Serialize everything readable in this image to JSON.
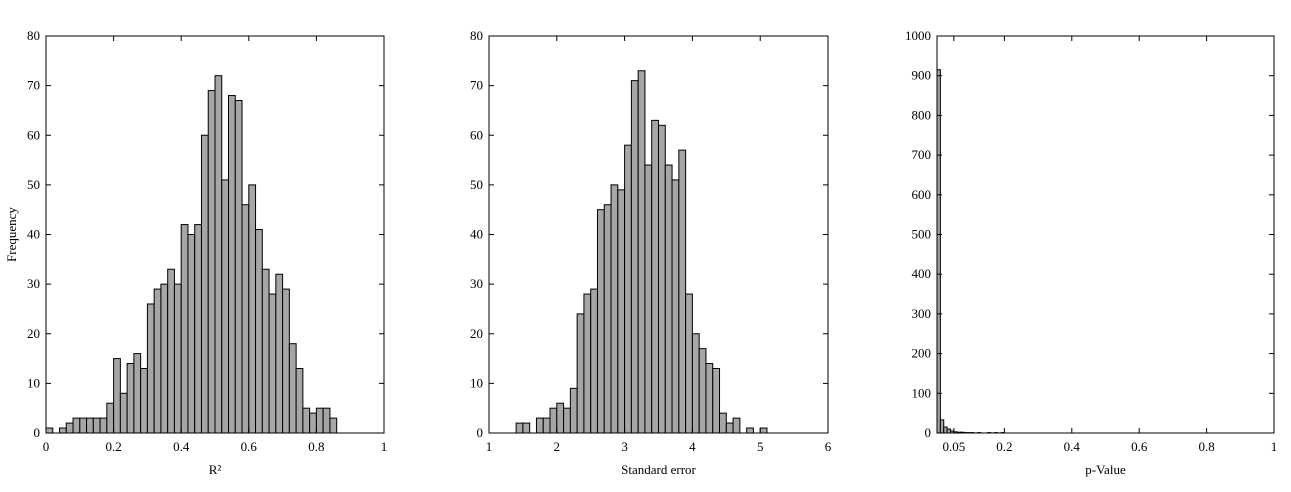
{
  "chart_data": [
    {
      "type": "histogram",
      "xlabel": "R²",
      "ylabel": "Frequency",
      "color": "#a6a6a6",
      "bins": [
        0,
        0.02,
        0.04,
        0.06,
        0.08,
        0.1,
        0.12,
        0.14,
        0.16,
        0.18,
        0.2,
        0.22,
        0.24,
        0.26,
        0.28,
        0.3,
        0.32,
        0.34,
        0.36,
        0.38,
        0.4,
        0.42,
        0.44,
        0.46,
        0.48,
        0.5,
        0.52,
        0.54,
        0.56,
        0.58,
        0.6,
        0.62,
        0.64,
        0.66,
        0.68,
        0.7,
        0.72,
        0.74,
        0.76,
        0.78,
        0.8,
        0.82,
        0.84,
        0.86
      ],
      "values": [
        1,
        0,
        1,
        2,
        3,
        3,
        3,
        3,
        3,
        6,
        15,
        8,
        14,
        16,
        13,
        26,
        29,
        30,
        33,
        30,
        42,
        40,
        42,
        60,
        69,
        72,
        51,
        68,
        67,
        46,
        50,
        41,
        33,
        28,
        32,
        29,
        18,
        13,
        5,
        4,
        5,
        5,
        3
      ],
      "xlim": [
        0,
        1
      ],
      "xticks": [
        0,
        0.2,
        0.4,
        0.6,
        0.8,
        1
      ],
      "ylim": [
        0,
        80
      ],
      "yticks": [
        0,
        10,
        20,
        30,
        40,
        50,
        60,
        70,
        80
      ]
    },
    {
      "type": "histogram",
      "xlabel": "Standard error",
      "color": "#a6a6a6",
      "bins": [
        1.4,
        1.5,
        1.6,
        1.7,
        1.8,
        1.9,
        2.0,
        2.1,
        2.2,
        2.3,
        2.4,
        2.5,
        2.6,
        2.7,
        2.8,
        2.9,
        3.0,
        3.1,
        3.2,
        3.3,
        3.4,
        3.5,
        3.6,
        3.7,
        3.8,
        3.9,
        4.0,
        4.1,
        4.2,
        4.3,
        4.4,
        4.5,
        4.6,
        4.7,
        4.8,
        4.9,
        5.0,
        5.1
      ],
      "values": [
        2,
        2,
        0,
        3,
        3,
        5,
        6,
        5,
        9,
        24,
        28,
        29,
        45,
        46,
        50,
        49,
        58,
        71,
        73,
        54,
        63,
        62,
        54,
        51,
        57,
        28,
        20,
        17,
        14,
        13,
        4,
        2,
        3,
        0,
        1,
        0,
        1
      ],
      "xlim": [
        1,
        6
      ],
      "xticks": [
        1,
        2,
        3,
        4,
        5,
        6
      ],
      "ylim": [
        0,
        80
      ],
      "yticks": [
        0,
        10,
        20,
        30,
        40,
        50,
        60,
        70,
        80
      ]
    },
    {
      "type": "histogram",
      "xlabel": "p-Value",
      "color": "#a6a6a6",
      "bins": [
        0,
        0.01,
        0.02,
        0.03,
        0.04,
        0.05,
        0.06,
        0.07,
        0.08,
        0.09,
        0.1,
        0.11,
        0.12,
        0.13,
        0.14,
        0.15,
        0.16,
        0.17,
        0.18,
        0.19,
        0.2
      ],
      "values": [
        915,
        33,
        15,
        10,
        5,
        3,
        2,
        2,
        1,
        1,
        1,
        0,
        1,
        0,
        0,
        1,
        0,
        1,
        0,
        1
      ],
      "xlim": [
        0,
        1
      ],
      "xticks": [
        0.05,
        0.2,
        0.4,
        0.6,
        0.8,
        1
      ],
      "ylim": [
        0,
        1000
      ],
      "yticks": [
        0,
        100,
        200,
        300,
        400,
        500,
        600,
        700,
        800,
        900,
        1000
      ]
    }
  ]
}
